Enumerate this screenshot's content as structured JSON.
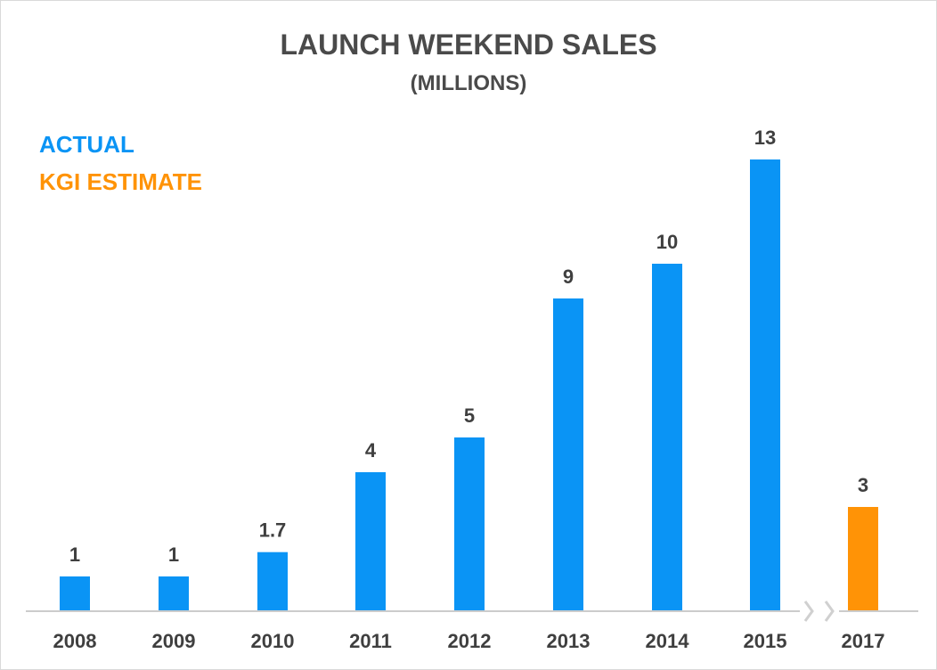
{
  "chart_data": {
    "type": "bar",
    "title": "LAUNCH WEEKEND SALES",
    "subtitle": "(MILLIONS)",
    "categories": [
      "2008",
      "2009",
      "2010",
      "2011",
      "2012",
      "2013",
      "2014",
      "2015",
      "2017"
    ],
    "series": [
      {
        "name": "ACTUAL",
        "color": "#0a94f5",
        "values": [
          1,
          1,
          1.7,
          4,
          5,
          9,
          10,
          13,
          null
        ]
      },
      {
        "name": "KGI ESTIMATE",
        "color": "#ff9306",
        "values": [
          null,
          null,
          null,
          null,
          null,
          null,
          null,
          null,
          3
        ]
      }
    ],
    "data_labels": [
      "1",
      "1",
      "1.7",
      "4",
      "5",
      "9",
      "10",
      "13",
      "3"
    ],
    "axis_break_between": [
      "2015",
      "2017"
    ],
    "ylim": [
      0,
      13
    ],
    "grid": false,
    "legend_position": "top-left",
    "xlabel": "",
    "ylabel": "",
    "colors": {
      "axis": "#cccccc",
      "text": "#3f3f3f",
      "title": "#4a4a4a",
      "break_marks": "#d0d0d0"
    }
  }
}
